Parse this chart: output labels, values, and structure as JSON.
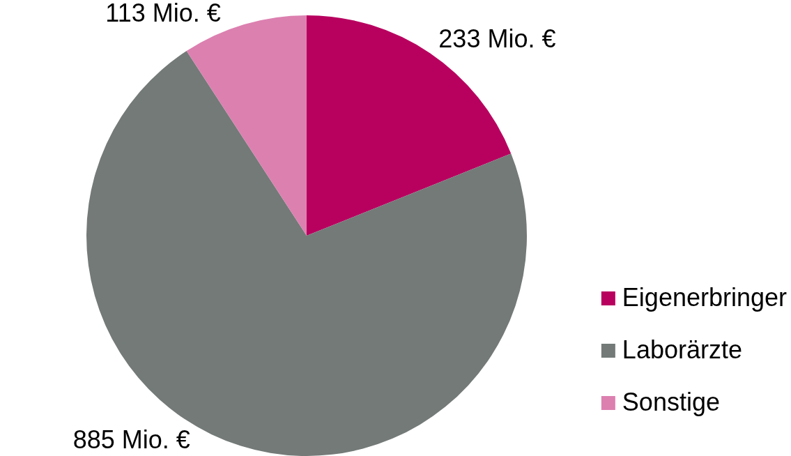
{
  "chart_data": {
    "type": "pie",
    "categories": [
      "Eigenerbringer",
      "Laborärzte",
      "Sonstige"
    ],
    "values": [
      233,
      885,
      113
    ],
    "colors": [
      "#b8005f",
      "#737a78",
      "#dc80b0"
    ],
    "value_labels": [
      "233 Mio. €",
      "885 Mio. €",
      "113 Mio. €"
    ],
    "legend": "bottom right"
  }
}
